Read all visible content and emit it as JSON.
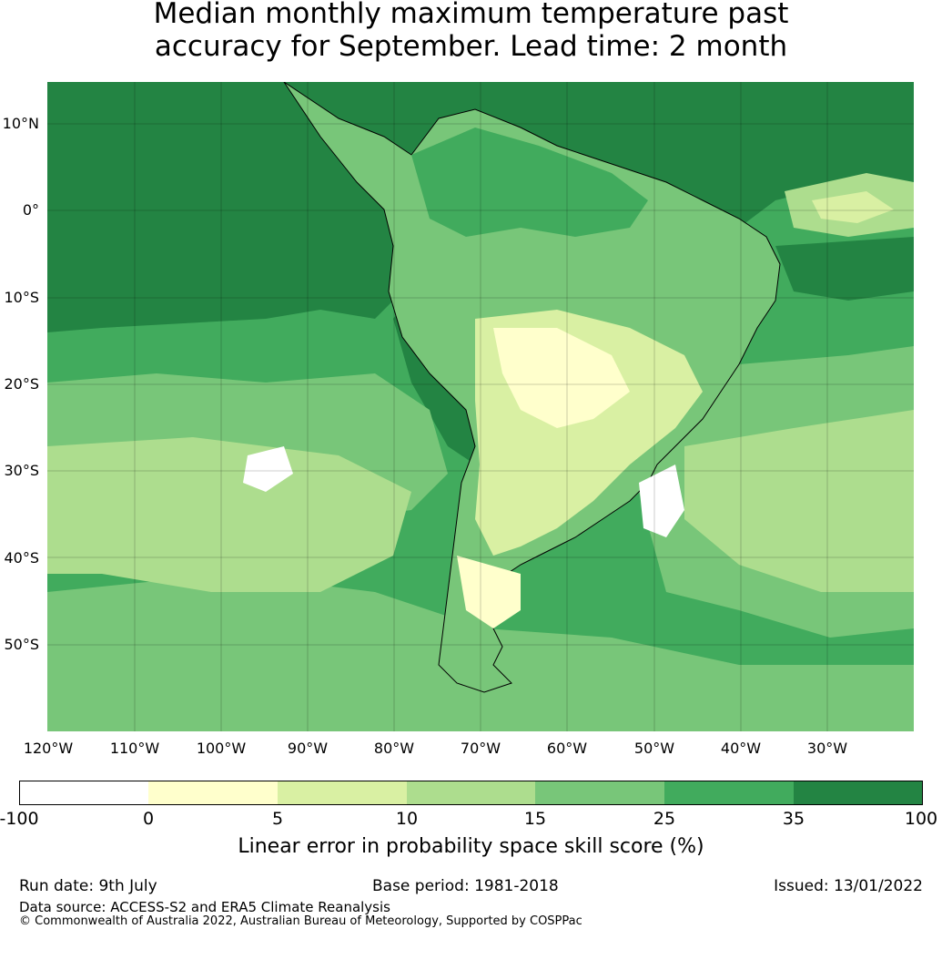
{
  "title": {
    "line1": "Median monthly maximum temperature past",
    "line2": "accuracy for September. Lead time: 2 month"
  },
  "map": {
    "lat_labels": [
      "10°N",
      "0°",
      "10°S",
      "20°S",
      "30°S",
      "40°S",
      "50°S"
    ],
    "lon_labels": [
      "120°W",
      "110°W",
      "100°W",
      "90°W",
      "80°W",
      "70°W",
      "60°W",
      "50°W",
      "40°W",
      "30°W"
    ],
    "colors": {
      "ocean_dark": "#238443",
      "c25_35": "#41ab5d",
      "c15_25": "#78c679",
      "c10_15": "#addd8e",
      "c5_10": "#d9f0a3",
      "c0_5": "#ffffcc",
      "neg": "#ffffff"
    }
  },
  "colorbar": {
    "ticks": [
      "-100",
      "0",
      "5",
      "10",
      "15",
      "25",
      "35",
      "100"
    ],
    "colors": [
      "#ffffff",
      "#ffffcc",
      "#d9f0a3",
      "#addd8e",
      "#78c679",
      "#41ab5d",
      "#238443"
    ],
    "label": "Linear error in probability space skill score (%)"
  },
  "footer": {
    "run_date": "Run date: 9th July",
    "base_period": "Base period: 1981-2018",
    "issued": "Issued: 13/01/2022",
    "data_source": "Data source: ACCESS-S2 and ERA5 Climate Reanalysis",
    "copyright": "© Commonwealth of Australia 2022, Australian Bureau of Meteorology, Supported by COSPPac"
  }
}
